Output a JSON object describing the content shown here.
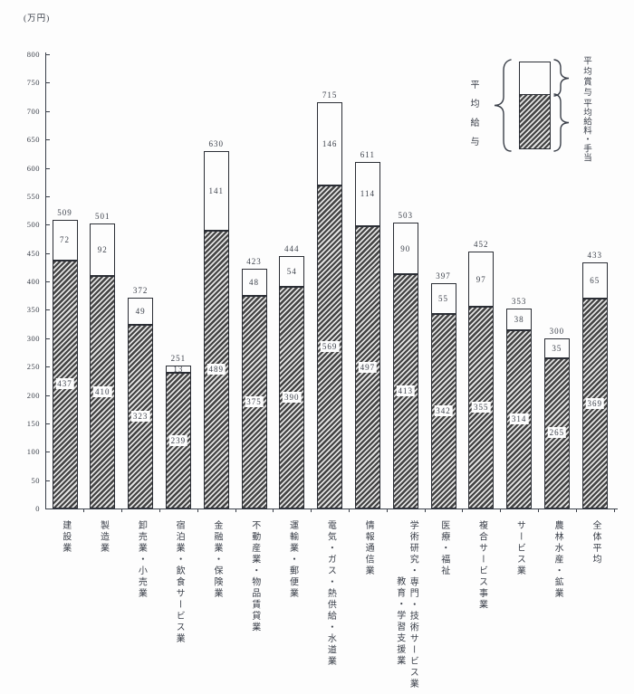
{
  "unit_label": "(万円)",
  "colors": {
    "ink": "#3a3f49",
    "bar_border": "#2b2e35",
    "hatch_dark": "#424242",
    "hatch_light": "#e3e3e3",
    "background": "#fdfdfd"
  },
  "legend": {
    "left_label": "平均給与",
    "right_top_label": "平均賞与",
    "right_bottom_label": "平均給料・手当"
  },
  "chart_data": {
    "type": "bar",
    "stacked": true,
    "title": "",
    "xlabel": "",
    "ylabel": "(万円)",
    "ylim": [
      0,
      800
    ],
    "ytick_step": 50,
    "grid": false,
    "legend_position": "top-right",
    "categories": [
      [
        "建設業"
      ],
      [
        "製造業"
      ],
      [
        "卸売業・小売業"
      ],
      [
        "宿泊業・飲食サービス業"
      ],
      [
        "金融業・保険業"
      ],
      [
        "不動産業・物品賃貸業"
      ],
      [
        "運輸業・郵便業"
      ],
      [
        "電気・ガス・熱供給・水道業"
      ],
      [
        "情報通信業"
      ],
      [
        "学術研究・専門・技術サービス業",
        "教育・学習支援業"
      ],
      [
        "医療・福祉"
      ],
      [
        "複合サービス事業"
      ],
      [
        "サービス業"
      ],
      [
        "農林水産・鉱業"
      ],
      [
        "全体平均"
      ]
    ],
    "series": [
      {
        "name": "平均給料・手当",
        "values": [
          437,
          410,
          323,
          239,
          489,
          375,
          390,
          569,
          497,
          413,
          342,
          355,
          314,
          265,
          369
        ]
      },
      {
        "name": "平均賞与",
        "values": [
          72,
          92,
          49,
          13,
          141,
          48,
          54,
          146,
          114,
          90,
          55,
          97,
          38,
          35,
          65
        ]
      }
    ],
    "totals": [
      509,
      501,
      372,
      251,
      630,
      423,
      444,
      715,
      611,
      503,
      397,
      452,
      353,
      300,
      433
    ]
  }
}
